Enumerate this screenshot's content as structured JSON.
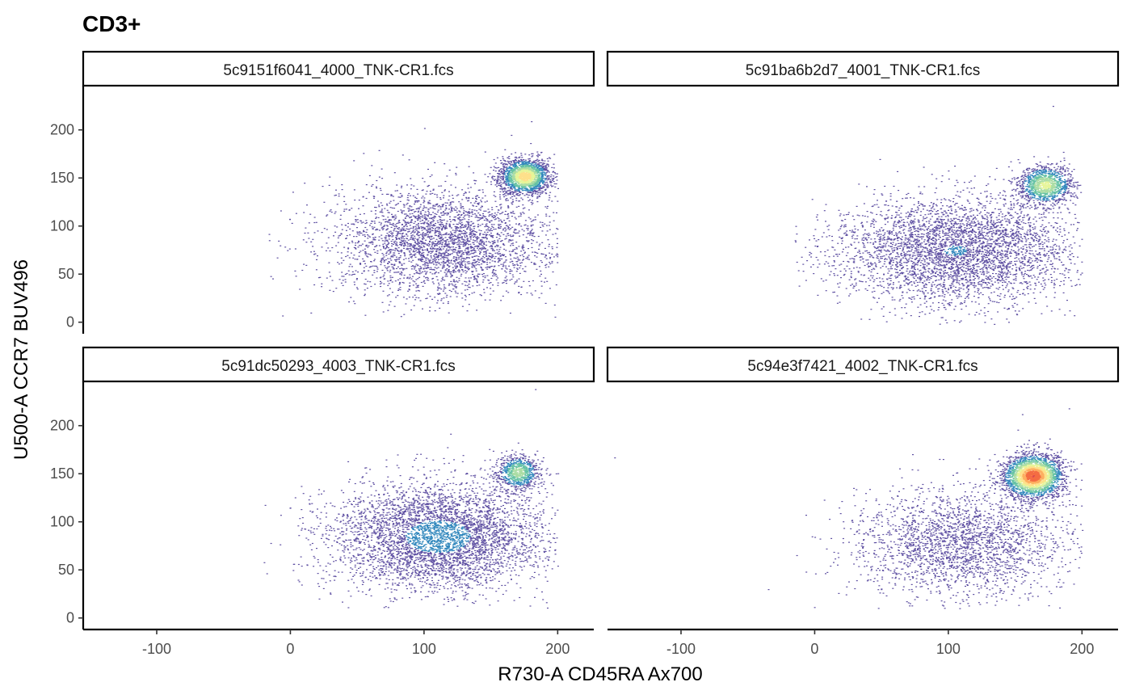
{
  "chart_data": {
    "type": "scatter",
    "title": "CD3+",
    "xlabel": "R730-A CD45RA Ax700",
    "ylabel": "U500-A CCR7 BUV496",
    "xlim": [
      -155,
      227
    ],
    "ylim": [
      -12,
      246
    ],
    "x_ticks": [
      -100,
      0,
      100,
      200
    ],
    "y_ticks": [
      0,
      50,
      100,
      150,
      200
    ],
    "grid": false,
    "density_colors": [
      "#5e4fa2",
      "#3288bd",
      "#66c2a5",
      "#abdda4",
      "#e6f598",
      "#fee08b",
      "#fdae61",
      "#f46d43",
      "#d53e4f"
    ],
    "panels": [
      {
        "label": "5c9151f6041_4000_TNK-CR1.fcs",
        "clusters": [
          {
            "x": 115,
            "y": 85,
            "sx": 42,
            "sy": 28,
            "w": 0.62
          },
          {
            "x": 175,
            "y": 152,
            "sx": 9,
            "sy": 9,
            "w": 0.38
          }
        ],
        "x_range": [
          -20,
          200
        ],
        "y_range": [
          5,
          210
        ],
        "outliers": [
          [
            100,
            202
          ],
          [
            180,
            209
          ],
          [
            -15,
            48
          ],
          [
            15,
            10
          ]
        ]
      },
      {
        "label": "5c91ba6b2d7_4001_TNK-CR1.fcs",
        "clusters": [
          {
            "x": 105,
            "y": 75,
            "sx": 45,
            "sy": 28,
            "w": 0.78
          },
          {
            "x": 172,
            "y": 143,
            "sx": 10,
            "sy": 10,
            "w": 0.22
          }
        ],
        "x_range": [
          -15,
          200
        ],
        "y_range": [
          -3,
          225
        ],
        "outliers": [
          [
            178,
            225
          ],
          [
            -12,
            38
          ],
          [
            190,
            165
          ]
        ]
      },
      {
        "label": "5c91dc50293_4003_TNK-CR1.fcs",
        "clusters": [
          {
            "x": 110,
            "y": 85,
            "sx": 40,
            "sy": 28,
            "w": 0.86
          },
          {
            "x": 170,
            "y": 152,
            "sx": 8,
            "sy": 9,
            "w": 0.14
          }
        ],
        "x_range": [
          -20,
          200
        ],
        "y_range": [
          10,
          240
        ],
        "outliers": [
          [
            183,
            238
          ],
          [
            -20,
            58
          ],
          [
            -15,
            78
          ]
        ]
      },
      {
        "label": "5c94e3f7421_4002_TNK-CR1.fcs",
        "clusters": [
          {
            "x": 110,
            "y": 78,
            "sx": 40,
            "sy": 28,
            "w": 0.45
          },
          {
            "x": 163,
            "y": 148,
            "sx": 11,
            "sy": 11,
            "w": 0.55
          }
        ],
        "x_range": [
          -25,
          200
        ],
        "y_range": [
          10,
          220
        ],
        "outliers": [
          [
            -150,
            167
          ],
          [
            -35,
            30
          ],
          [
            155,
            212
          ],
          [
            190,
            218
          ]
        ]
      }
    ]
  }
}
